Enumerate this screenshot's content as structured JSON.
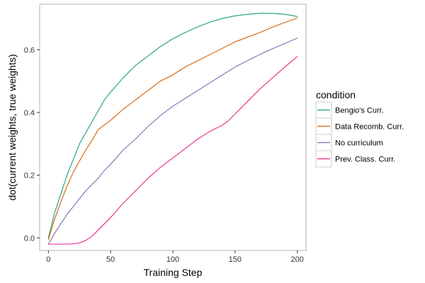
{
  "chart_data": {
    "type": "line",
    "title": "",
    "xlabel": "Training Step",
    "ylabel": "dot(current weights, true weights)",
    "xlim": [
      -7,
      207
    ],
    "ylim": [
      -0.04,
      0.745
    ],
    "x_ticks": [
      0,
      50,
      100,
      150,
      200
    ],
    "y_ticks": [
      0.0,
      0.2,
      0.4,
      0.6
    ],
    "x_tick_labels": [
      "0",
      "50",
      "100",
      "150",
      "200"
    ],
    "y_tick_labels": [
      "0.0",
      "0.2",
      "0.4",
      "0.6"
    ],
    "grid": false,
    "legend": {
      "title": "condition",
      "position": "right"
    },
    "series": [
      {
        "name": "Bengio's Curr.",
        "color": "#1b9e77",
        "x": [
          0,
          5,
          10,
          15,
          20,
          25,
          30,
          35,
          40,
          45,
          50,
          60,
          70,
          80,
          90,
          100,
          110,
          120,
          130,
          140,
          150,
          160,
          170,
          180,
          190,
          200
        ],
        "y": [
          0.0,
          0.08,
          0.14,
          0.2,
          0.25,
          0.3,
          0.335,
          0.37,
          0.405,
          0.44,
          0.465,
          0.51,
          0.55,
          0.58,
          0.61,
          0.635,
          0.655,
          0.673,
          0.688,
          0.7,
          0.708,
          0.713,
          0.716,
          0.716,
          0.713,
          0.706
        ]
      },
      {
        "name": "Data Recomb. Curr.",
        "color": "#d95f02",
        "x": [
          0,
          5,
          10,
          15,
          20,
          25,
          30,
          35,
          40,
          45,
          50,
          60,
          70,
          80,
          90,
          100,
          110,
          120,
          130,
          140,
          150,
          160,
          170,
          180,
          190,
          200
        ],
        "y": [
          -0.005,
          0.06,
          0.115,
          0.165,
          0.21,
          0.245,
          0.28,
          0.31,
          0.345,
          0.36,
          0.375,
          0.41,
          0.44,
          0.47,
          0.5,
          0.52,
          0.545,
          0.565,
          0.585,
          0.605,
          0.625,
          0.64,
          0.655,
          0.672,
          0.687,
          0.701
        ]
      },
      {
        "name": "No curriculum",
        "color": "#7570b3",
        "x": [
          0,
          5,
          10,
          15,
          20,
          25,
          30,
          35,
          40,
          45,
          50,
          60,
          70,
          80,
          90,
          100,
          110,
          120,
          130,
          140,
          150,
          160,
          170,
          180,
          190,
          200
        ],
        "y": [
          -0.02,
          0.015,
          0.045,
          0.075,
          0.1,
          0.125,
          0.15,
          0.17,
          0.19,
          0.215,
          0.235,
          0.28,
          0.315,
          0.355,
          0.39,
          0.42,
          0.445,
          0.47,
          0.495,
          0.52,
          0.545,
          0.565,
          0.585,
          0.603,
          0.62,
          0.637
        ]
      },
      {
        "name": "Prev. Class. Curr.",
        "color": "#e7298a",
        "x": [
          0,
          10,
          20,
          25,
          30,
          35,
          40,
          45,
          50,
          60,
          70,
          80,
          90,
          100,
          110,
          120,
          130,
          140,
          145,
          150,
          160,
          170,
          180,
          190,
          200
        ],
        "y": [
          -0.02,
          -0.02,
          -0.019,
          -0.016,
          -0.008,
          0.005,
          0.025,
          0.045,
          0.065,
          0.11,
          0.15,
          0.19,
          0.225,
          0.255,
          0.285,
          0.315,
          0.34,
          0.36,
          0.375,
          0.395,
          0.435,
          0.475,
          0.51,
          0.545,
          0.578
        ]
      }
    ]
  }
}
